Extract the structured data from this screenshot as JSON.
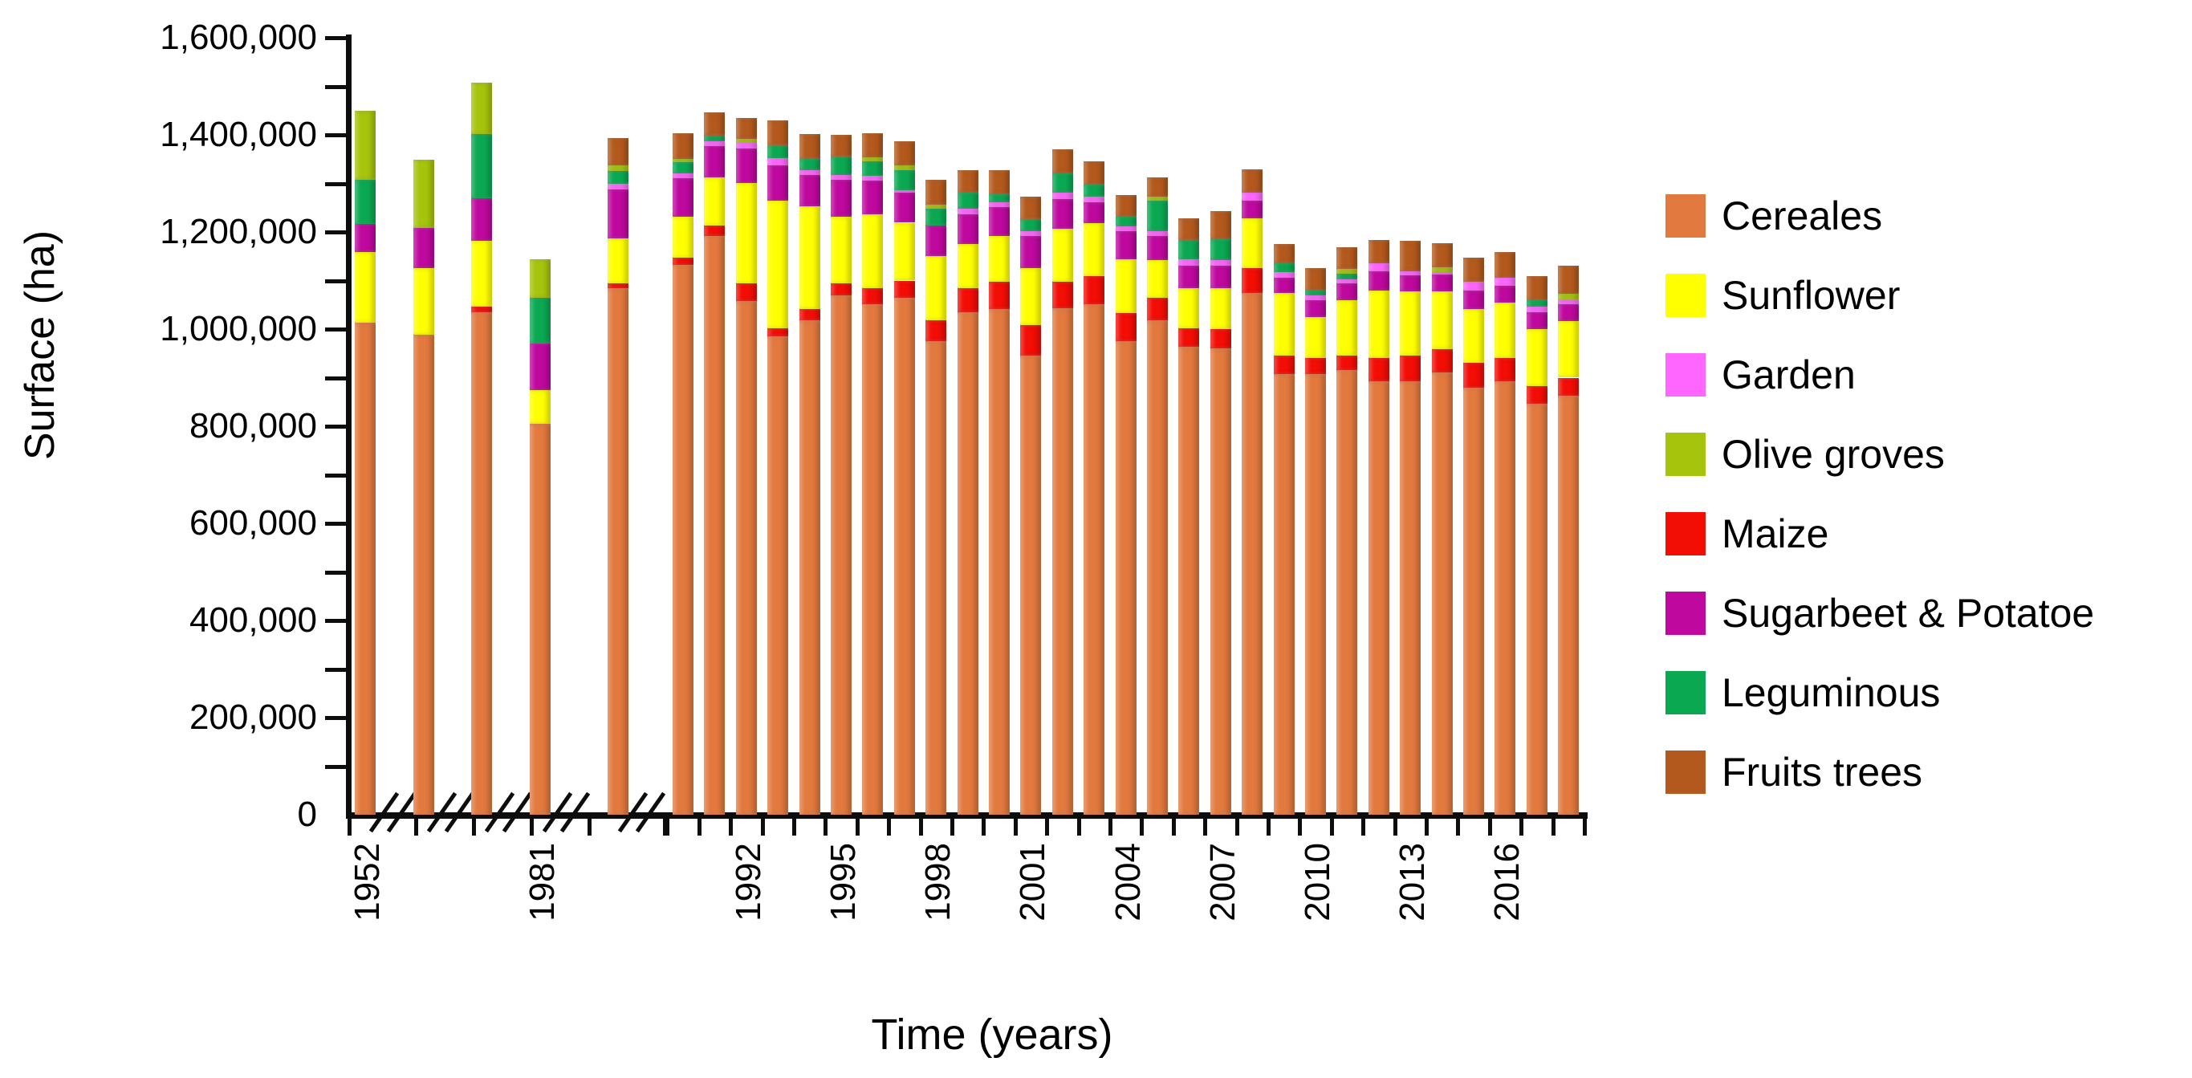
{
  "page": {
    "background": "#FFFFFF"
  },
  "chart_data": {
    "type": "bar",
    "stacked": true,
    "title": "",
    "xlabel": "Time (years)",
    "ylabel": "Surface (ha)",
    "ylim": [
      0,
      1600000
    ],
    "y_major_tick_step": 200000,
    "y_minor_tick_step": 100000,
    "y_tick_labels": [
      "0",
      "200,000",
      "400,000",
      "600,000",
      "800,000",
      "1,000,000",
      "1,200,000",
      "1,400,000",
      "1,600,000"
    ],
    "x_visible_tick_labels": [
      "1952",
      "1981",
      "1992",
      "1995",
      "1998",
      "2001",
      "2004",
      "2007",
      "2010",
      "2013",
      "2016"
    ],
    "x_axis_has_breaks": true,
    "isolated_bar_count": 5,
    "grid": false,
    "legend_position": "right-middle",
    "legend": [
      {
        "label": "Cereales",
        "color": "#E2793E"
      },
      {
        "label": "Sunflower",
        "color": "#FFFF00"
      },
      {
        "label": "Garden",
        "color": "#FF66FF"
      },
      {
        "label": "Olive groves",
        "color": "#A6C40C"
      },
      {
        "label": "Maize",
        "color": "#F20D05"
      },
      {
        "label": "Sugarbeet & Potatoe",
        "color": "#BE089E"
      },
      {
        "label": "Leguminous",
        "color": "#0BA852"
      },
      {
        "label": "Fruits trees",
        "color": "#B3591D"
      }
    ],
    "stack_order_bottom_to_top": [
      "Cereales",
      "Maize",
      "Sunflower",
      "Sugarbeet & Potatoe",
      "Garden",
      "Leguminous",
      "Olive groves",
      "Fruits trees"
    ],
    "bars": [
      {
        "label": "1952",
        "year": 1952,
        "group": "isolated",
        "values": {
          "Cereales": 1013000,
          "Maize": 0,
          "Sunflower": 146000,
          "Sugarbeet & Potatoe": 58000,
          "Garden": 0,
          "Leguminous": 90000,
          "Olive groves": 142000,
          "Fruits trees": 0
        }
      },
      {
        "label": "",
        "year": null,
        "group": "isolated",
        "values": {
          "Cereales": 988000,
          "Maize": 0,
          "Sunflower": 137000,
          "Sugarbeet & Potatoe": 84000,
          "Garden": 0,
          "Leguminous": 0,
          "Olive groves": 139000,
          "Fruits trees": 0
        }
      },
      {
        "label": "",
        "year": null,
        "group": "isolated",
        "values": {
          "Cereales": 1035000,
          "Maize": 12000,
          "Sunflower": 134000,
          "Sugarbeet & Potatoe": 89000,
          "Garden": 0,
          "Leguminous": 132000,
          "Olive groves": 106000,
          "Fruits trees": 0
        }
      },
      {
        "label": "1981",
        "year": 1981,
        "group": "isolated",
        "values": {
          "Cereales": 805000,
          "Maize": 0,
          "Sunflower": 69000,
          "Sugarbeet & Potatoe": 97000,
          "Garden": 0,
          "Leguminous": 93000,
          "Olive groves": 80000,
          "Fruits trees": 0
        }
      },
      {
        "label": "",
        "year": null,
        "group": "isolated",
        "values": {
          "Cereales": 1085000,
          "Maize": 10000,
          "Sunflower": 92000,
          "Sugarbeet & Potatoe": 101000,
          "Garden": 11000,
          "Leguminous": 26000,
          "Olive groves": 13000,
          "Fruits trees": 55000
        }
      },
      {
        "label": "",
        "year": 1990,
        "group": "continuous",
        "values": {
          "Cereales": 1132000,
          "Maize": 15000,
          "Sunflower": 84000,
          "Sugarbeet & Potatoe": 80000,
          "Garden": 10000,
          "Leguminous": 22000,
          "Olive groves": 8000,
          "Fruits trees": 52000
        }
      },
      {
        "label": "",
        "year": 1991,
        "group": "continuous",
        "values": {
          "Cereales": 1191000,
          "Maize": 22000,
          "Sunflower": 100000,
          "Sugarbeet & Potatoe": 64000,
          "Garden": 10000,
          "Leguminous": 12000,
          "Olive groves": 0,
          "Fruits trees": 47000
        }
      },
      {
        "label": "1992",
        "year": 1992,
        "group": "continuous",
        "values": {
          "Cereales": 1058000,
          "Maize": 36000,
          "Sunflower": 207000,
          "Sugarbeet & Potatoe": 71000,
          "Garden": 11000,
          "Leguminous": 0,
          "Olive groves": 9000,
          "Fruits trees": 43000
        }
      },
      {
        "label": "",
        "year": 1993,
        "group": "continuous",
        "values": {
          "Cereales": 985000,
          "Maize": 17000,
          "Sunflower": 263000,
          "Sugarbeet & Potatoe": 72000,
          "Garden": 15000,
          "Leguminous": 27000,
          "Olive groves": 0,
          "Fruits trees": 51000
        }
      },
      {
        "label": "",
        "year": 1994,
        "group": "continuous",
        "values": {
          "Cereales": 1018000,
          "Maize": 24000,
          "Sunflower": 211000,
          "Sugarbeet & Potatoe": 65000,
          "Garden": 9000,
          "Leguminous": 23000,
          "Olive groves": 0,
          "Fruits trees": 52000
        }
      },
      {
        "label": "1995",
        "year": 1995,
        "group": "continuous",
        "values": {
          "Cereales": 1069000,
          "Maize": 25000,
          "Sunflower": 137000,
          "Sugarbeet & Potatoe": 76000,
          "Garden": 11000,
          "Leguminous": 37000,
          "Olive groves": 0,
          "Fruits trees": 45000
        }
      },
      {
        "label": "",
        "year": 1996,
        "group": "continuous",
        "values": {
          "Cereales": 1052000,
          "Maize": 33000,
          "Sunflower": 151000,
          "Sugarbeet & Potatoe": 70000,
          "Garden": 9000,
          "Leguminous": 30000,
          "Olive groves": 8000,
          "Fruits trees": 50000
        }
      },
      {
        "label": "",
        "year": 1997,
        "group": "continuous",
        "values": {
          "Cereales": 1064000,
          "Maize": 36000,
          "Sunflower": 119000,
          "Sugarbeet & Potatoe": 62000,
          "Garden": 5000,
          "Leguminous": 42000,
          "Olive groves": 9000,
          "Fruits trees": 50000
        }
      },
      {
        "label": "1998",
        "year": 1998,
        "group": "continuous",
        "values": {
          "Cereales": 975000,
          "Maize": 43000,
          "Sunflower": 132000,
          "Sugarbeet & Potatoe": 64000,
          "Garden": 0,
          "Leguminous": 34000,
          "Olive groves": 8000,
          "Fruits trees": 51000
        }
      },
      {
        "label": "",
        "year": 1999,
        "group": "continuous",
        "values": {
          "Cereales": 1035000,
          "Maize": 50000,
          "Sunflower": 91000,
          "Sugarbeet & Potatoe": 60000,
          "Garden": 12000,
          "Leguminous": 33000,
          "Olive groves": 0,
          "Fruits trees": 47000
        }
      },
      {
        "label": "",
        "year": 2000,
        "group": "continuous",
        "values": {
          "Cereales": 1042000,
          "Maize": 55000,
          "Sunflower": 95000,
          "Sugarbeet & Potatoe": 59000,
          "Garden": 10000,
          "Leguminous": 17000,
          "Olive groves": 0,
          "Fruits trees": 49000
        }
      },
      {
        "label": "2001",
        "year": 2001,
        "group": "continuous",
        "values": {
          "Cereales": 946000,
          "Maize": 62000,
          "Sunflower": 117000,
          "Sugarbeet & Potatoe": 67000,
          "Garden": 9000,
          "Leguminous": 25000,
          "Olive groves": 0,
          "Fruits trees": 47000
        }
      },
      {
        "label": "",
        "year": 2002,
        "group": "continuous",
        "values": {
          "Cereales": 1043000,
          "Maize": 54000,
          "Sunflower": 109000,
          "Sugarbeet & Potatoe": 62000,
          "Garden": 13000,
          "Leguminous": 39000,
          "Olive groves": 0,
          "Fruits trees": 50000
        }
      },
      {
        "label": "",
        "year": 2003,
        "group": "continuous",
        "values": {
          "Cereales": 1052000,
          "Maize": 57000,
          "Sunflower": 110000,
          "Sugarbeet & Potatoe": 42000,
          "Garden": 12000,
          "Leguminous": 25000,
          "Olive groves": 0,
          "Fruits trees": 47000
        }
      },
      {
        "label": "2004",
        "year": 2004,
        "group": "continuous",
        "values": {
          "Cereales": 975000,
          "Maize": 58000,
          "Sunflower": 110000,
          "Sugarbeet & Potatoe": 58000,
          "Garden": 10000,
          "Leguminous": 20000,
          "Olive groves": 0,
          "Fruits trees": 45000
        }
      },
      {
        "label": "",
        "year": 2005,
        "group": "continuous",
        "values": {
          "Cereales": 1018000,
          "Maize": 46000,
          "Sunflower": 78000,
          "Sugarbeet & Potatoe": 50000,
          "Garden": 10000,
          "Leguminous": 63000,
          "Olive groves": 8000,
          "Fruits trees": 39000
        }
      },
      {
        "label": "",
        "year": 2006,
        "group": "continuous",
        "values": {
          "Cereales": 963000,
          "Maize": 39000,
          "Sunflower": 83000,
          "Sugarbeet & Potatoe": 46000,
          "Garden": 13000,
          "Leguminous": 40000,
          "Olive groves": 0,
          "Fruits trees": 44000
        }
      },
      {
        "label": "2007",
        "year": 2007,
        "group": "continuous",
        "values": {
          "Cereales": 960000,
          "Maize": 40000,
          "Sunflower": 85000,
          "Sugarbeet & Potatoe": 45000,
          "Garden": 12000,
          "Leguminous": 43000,
          "Olive groves": 0,
          "Fruits trees": 58000
        }
      },
      {
        "label": "",
        "year": 2008,
        "group": "continuous",
        "values": {
          "Cereales": 1075000,
          "Maize": 50000,
          "Sunflower": 103000,
          "Sugarbeet & Potatoe": 37000,
          "Garden": 16000,
          "Leguminous": 0,
          "Olive groves": 0,
          "Fruits trees": 48000
        }
      },
      {
        "label": "",
        "year": 2009,
        "group": "continuous",
        "values": {
          "Cereales": 908000,
          "Maize": 38000,
          "Sunflower": 129000,
          "Sugarbeet & Potatoe": 30000,
          "Garden": 12000,
          "Leguminous": 19000,
          "Olive groves": 0,
          "Fruits trees": 40000
        }
      },
      {
        "label": "2010",
        "year": 2010,
        "group": "continuous",
        "values": {
          "Cereales": 908000,
          "Maize": 33000,
          "Sunflower": 84000,
          "Sugarbeet & Potatoe": 34000,
          "Garden": 10000,
          "Leguminous": 11000,
          "Olive groves": 0,
          "Fruits trees": 45000
        }
      },
      {
        "label": "",
        "year": 2011,
        "group": "continuous",
        "values": {
          "Cereales": 916000,
          "Maize": 30000,
          "Sunflower": 113000,
          "Sugarbeet & Potatoe": 35000,
          "Garden": 8000,
          "Leguminous": 12000,
          "Olive groves": 10000,
          "Fruits trees": 45000
        }
      },
      {
        "label": "",
        "year": 2012,
        "group": "continuous",
        "values": {
          "Cereales": 893000,
          "Maize": 48000,
          "Sunflower": 139000,
          "Sugarbeet & Potatoe": 39000,
          "Garden": 17000,
          "Leguminous": 0,
          "Olive groves": 0,
          "Fruits trees": 48000
        }
      },
      {
        "label": "2013",
        "year": 2013,
        "group": "continuous",
        "values": {
          "Cereales": 893000,
          "Maize": 53000,
          "Sunflower": 131000,
          "Sugarbeet & Potatoe": 34000,
          "Garden": 8000,
          "Leguminous": 0,
          "Olive groves": 0,
          "Fruits trees": 62000
        }
      },
      {
        "label": "",
        "year": 2014,
        "group": "continuous",
        "values": {
          "Cereales": 910000,
          "Maize": 48000,
          "Sunflower": 119000,
          "Sugarbeet & Potatoe": 35000,
          "Garden": 5000,
          "Leguminous": 0,
          "Olive groves": 10000,
          "Fruits trees": 50000
        }
      },
      {
        "label": "",
        "year": 2015,
        "group": "continuous",
        "values": {
          "Cereales": 879000,
          "Maize": 51000,
          "Sunflower": 112000,
          "Sugarbeet & Potatoe": 38000,
          "Garden": 17000,
          "Leguminous": 0,
          "Olive groves": 0,
          "Fruits trees": 50000
        }
      },
      {
        "label": "2016",
        "year": 2016,
        "group": "continuous",
        "values": {
          "Cereales": 893000,
          "Maize": 48000,
          "Sunflower": 114000,
          "Sugarbeet & Potatoe": 34000,
          "Garden": 17000,
          "Leguminous": 0,
          "Olive groves": 0,
          "Fruits trees": 53000
        }
      },
      {
        "label": "",
        "year": 2017,
        "group": "continuous",
        "values": {
          "Cereales": 846000,
          "Maize": 37000,
          "Sunflower": 117000,
          "Sugarbeet & Potatoe": 35000,
          "Garden": 12000,
          "Leguminous": 12000,
          "Olive groves": 0,
          "Fruits trees": 50000
        }
      },
      {
        "label": "",
        "year": 2018,
        "group": "continuous",
        "values": {
          "Cereales": 863000,
          "Maize": 37000,
          "Sunflower": 117000,
          "Sugarbeet & Potatoe": 35000,
          "Garden": 8000,
          "Leguminous": 0,
          "Olive groves": 12000,
          "Fruits trees": 59000
        }
      }
    ]
  }
}
